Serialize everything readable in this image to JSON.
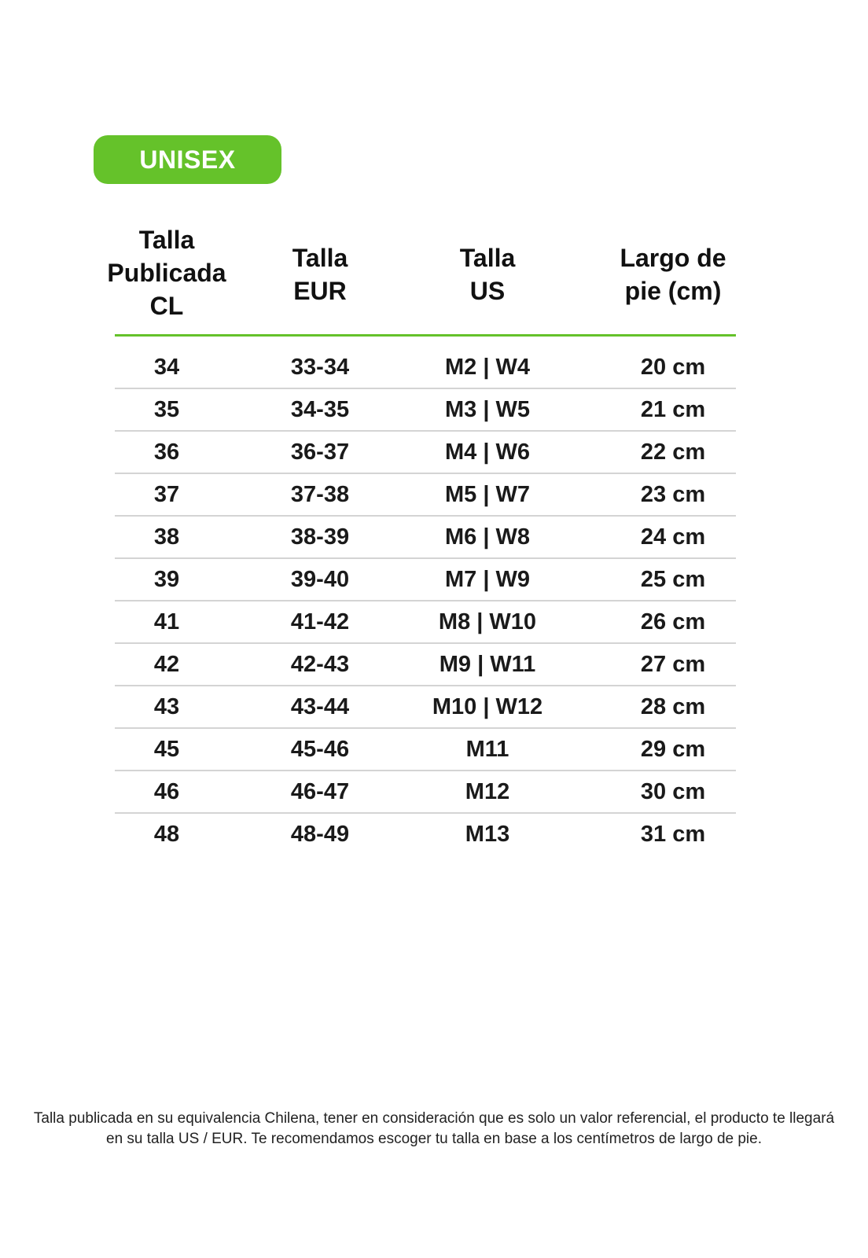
{
  "badge": {
    "label": "UNISEX",
    "color": "#65c22a"
  },
  "headers": [
    "Talla\nPublicada\nCL",
    "Talla\nEUR",
    "Talla\nUS",
    "Largo de\npie (cm)"
  ],
  "rows": [
    [
      "34",
      "33-34",
      "M2 | W4",
      "20 cm"
    ],
    [
      "35",
      "34-35",
      "M3 | W5",
      "21 cm"
    ],
    [
      "36",
      "36-37",
      "M4 | W6",
      "22 cm"
    ],
    [
      "37",
      "37-38",
      "M5 | W7",
      "23 cm"
    ],
    [
      "38",
      "38-39",
      "M6 | W8",
      "24 cm"
    ],
    [
      "39",
      "39-40",
      "M7 | W9",
      "25 cm"
    ],
    [
      "41",
      "41-42",
      "M8 | W10",
      "26 cm"
    ],
    [
      "42",
      "42-43",
      "M9 | W11",
      "27 cm"
    ],
    [
      "43",
      "43-44",
      "M10 | W12",
      "28 cm"
    ],
    [
      "45",
      "45-46",
      "M11",
      "29 cm"
    ],
    [
      "46",
      "46-47",
      "M12",
      "30 cm"
    ],
    [
      "48",
      "48-49",
      "M13",
      "31 cm"
    ]
  ],
  "footnote": "Talla publicada en su equivalencia Chilena, tener en consideración que es solo un valor referencial, el producto te llegará en su talla US / EUR. Te recomendamos escoger tu talla en base a los centímetros de largo de pie."
}
